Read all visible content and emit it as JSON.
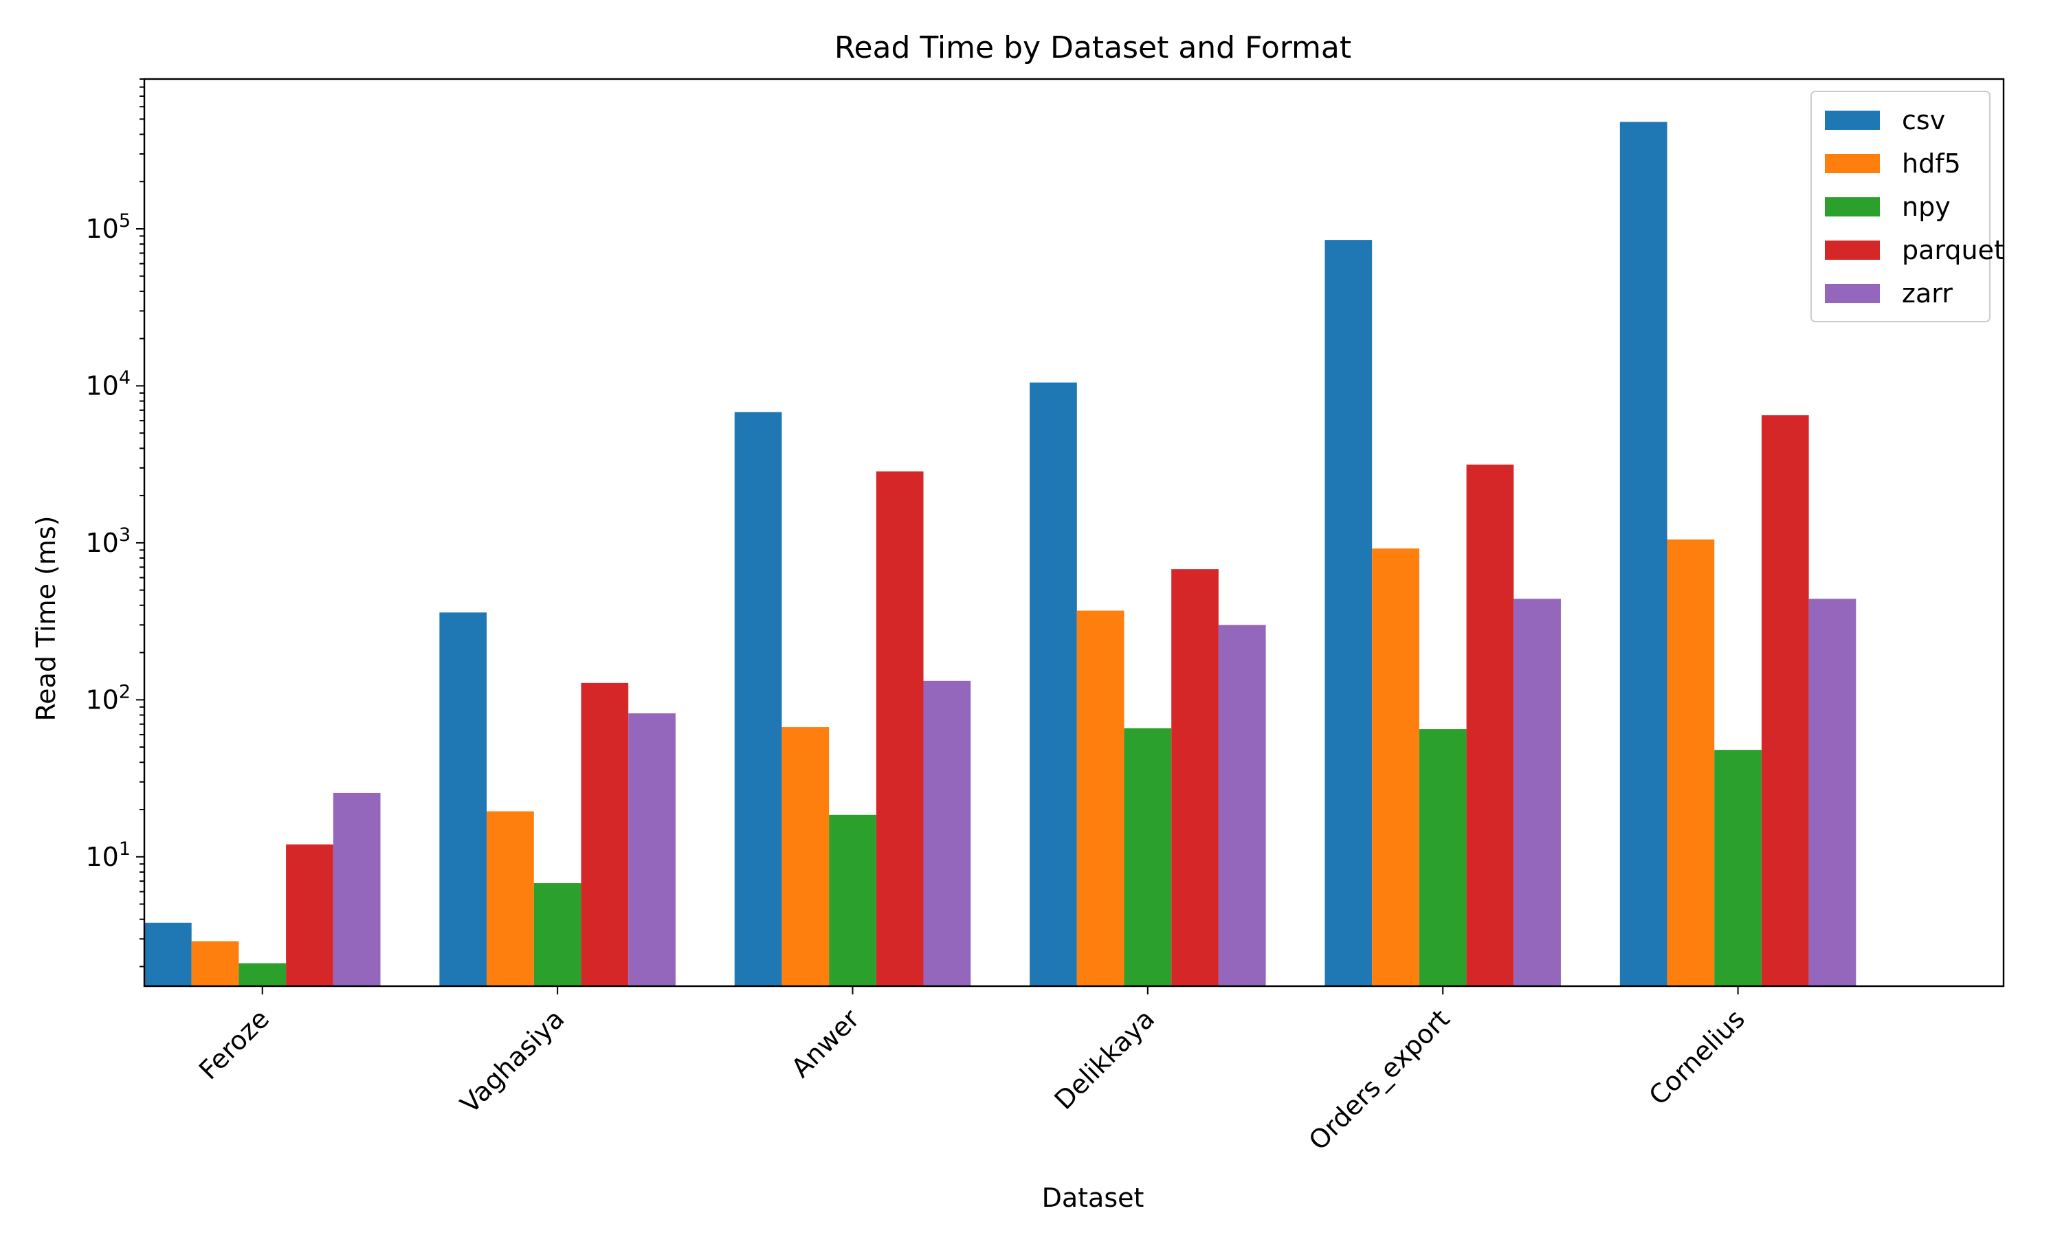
{
  "chart_data": {
    "type": "bar",
    "title": "Read Time by Dataset and Format",
    "xlabel": "Dataset",
    "ylabel": "Read Time (ms)",
    "yscale": "log",
    "ylim": [
      1.5,
      900000
    ],
    "yticks": [
      {
        "base": "10",
        "exp": "1",
        "value": 10
      },
      {
        "base": "10",
        "exp": "2",
        "value": 100
      },
      {
        "base": "10",
        "exp": "3",
        "value": 1000
      },
      {
        "base": "10",
        "exp": "4",
        "value": 10000
      },
      {
        "base": "10",
        "exp": "5",
        "value": 100000
      }
    ],
    "grid": false,
    "legend_position": "top-right",
    "categories": [
      "Feroze",
      "Vaghasiya",
      "Anwer",
      "Delikkaya",
      "Orders_export",
      "Cornelius"
    ],
    "series": [
      {
        "name": "csv",
        "color": "#1f77b4",
        "values": [
          3.8,
          360,
          6800,
          10500,
          85000,
          480000
        ]
      },
      {
        "name": "hdf5",
        "color": "#ff7f0e",
        "values": [
          2.9,
          19.5,
          67,
          370,
          920,
          1050
        ]
      },
      {
        "name": "npy",
        "color": "#2ca02c",
        "values": [
          2.1,
          6.8,
          18.5,
          66,
          65,
          48
        ]
      },
      {
        "name": "parquet",
        "color": "#d62728",
        "values": [
          12,
          128,
          2850,
          680,
          3150,
          6500
        ]
      },
      {
        "name": "zarr",
        "color": "#9467bd",
        "values": [
          25.5,
          82,
          132,
          300,
          440,
          440
        ]
      }
    ]
  }
}
